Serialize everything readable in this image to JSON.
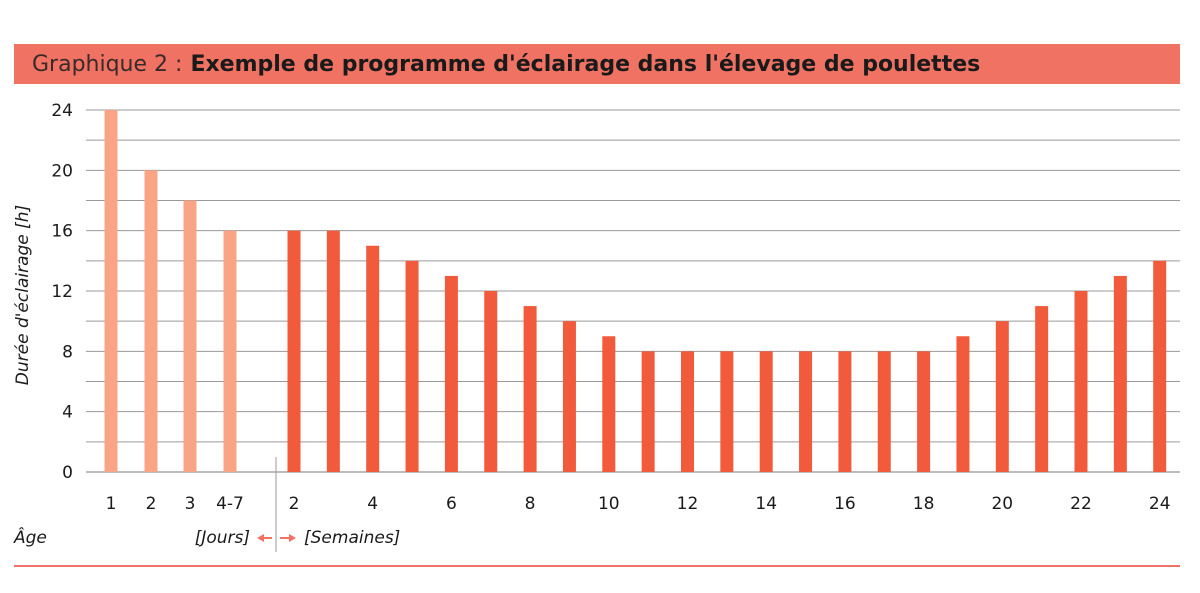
{
  "title": {
    "prefix": "Graphique 2 :",
    "main": "Exemple de programme d'éclairage dans l'élevage de poulettes"
  },
  "colors": {
    "title_bg": "#ef7263",
    "days_bar": "#f9a484",
    "weeks_bar": "#f25a3c",
    "gridline": "#9a9a9a",
    "arrow": "#ef7263"
  },
  "chart_data": {
    "type": "bar",
    "ylabel": "Durée d'éclairage [h]",
    "xlabel": "Âge",
    "ylim": [
      0,
      24
    ],
    "yticks": [
      0,
      4,
      8,
      12,
      16,
      20,
      24
    ],
    "grid": true,
    "unit_labels": {
      "days": "[Jours]",
      "weeks": "[Semaines]"
    },
    "series": [
      {
        "name": "Jours",
        "categories": [
          "1",
          "2",
          "3",
          "4-7"
        ],
        "values": [
          24,
          20,
          18,
          16
        ]
      },
      {
        "name": "Semaines",
        "categories": [
          "2",
          "3",
          "4",
          "5",
          "6",
          "7",
          "8",
          "9",
          "10",
          "11",
          "12",
          "13",
          "14",
          "15",
          "16",
          "17",
          "18",
          "19",
          "20",
          "21",
          "22",
          "23",
          "24"
        ],
        "values": [
          16,
          16,
          15,
          14,
          13,
          12,
          11,
          10,
          9,
          8,
          8,
          8,
          8,
          8,
          8,
          8,
          8,
          9,
          10,
          11,
          12,
          13,
          14
        ]
      }
    ],
    "x_tick_labels": [
      "1",
      "2",
      "3",
      "4-7",
      "2",
      "4",
      "6",
      "8",
      "10",
      "12",
      "14",
      "16",
      "18",
      "20",
      "22",
      "24"
    ]
  }
}
